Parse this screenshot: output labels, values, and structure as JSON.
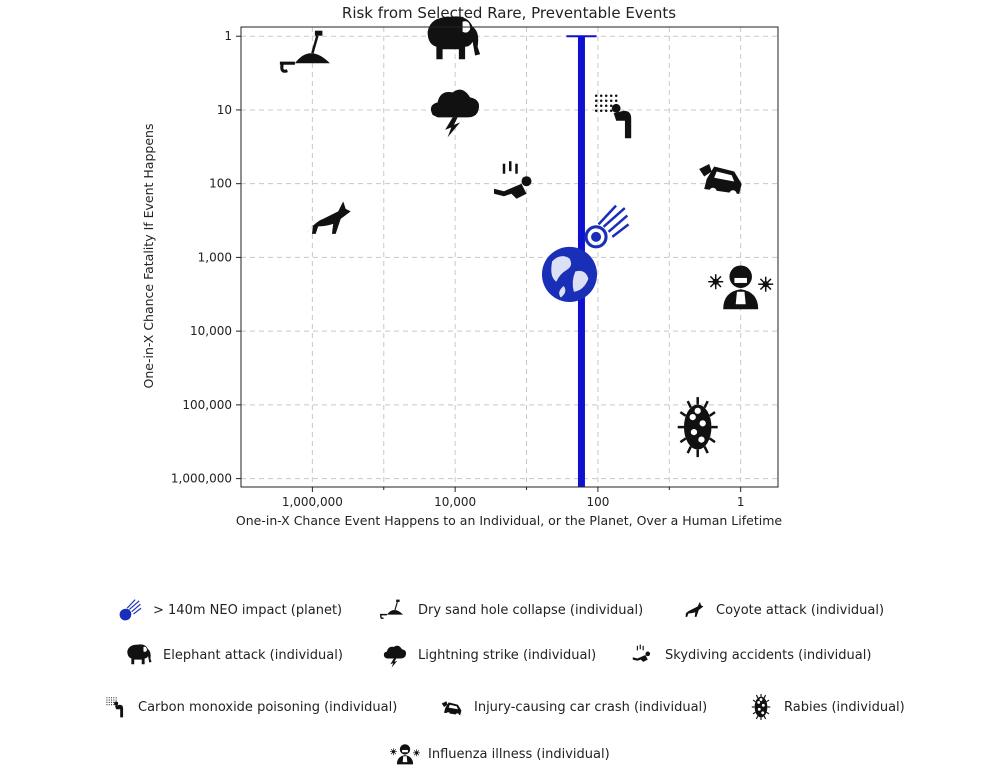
{
  "chart_data": {
    "type": "scatter",
    "title": "Risk from Selected Rare, Preventable Events",
    "xlabel": "One-in-X Chance Event Happens to an Individual, or the Planet, Over a Human Lifetime",
    "ylabel": "One-in-X Chance Fatality If Event Happens",
    "x_scale": "log",
    "y_scale": "log",
    "x_reversed": true,
    "y_reversed": true,
    "xlim": [
      10000000,
      0.3
    ],
    "ylim": [
      0.75,
      1300000
    ],
    "x_ticks": [
      1000000,
      10000,
      100,
      1
    ],
    "x_tick_labels": [
      "1,000,000",
      "10,000",
      "100",
      "1"
    ],
    "y_ticks": [
      1,
      10,
      100,
      1000,
      10000,
      100000,
      1000000
    ],
    "y_tick_labels": [
      "1",
      "10",
      "100",
      "1,000",
      "10,000",
      "100,000",
      "1,000,000"
    ],
    "grid": true,
    "vertical_range": {
      "x": 170,
      "y_from": 1,
      "y_to": 1300000,
      "color": "#1010d0"
    },
    "points": [
      {
        "label": "> 140m NEO impact (planet)",
        "icon": "earth-icon",
        "x": 250,
        "y": 1700,
        "color": "#1a2fb8"
      },
      {
        "label": "> 140m NEO impact (planet)",
        "icon": "meteor-icon",
        "x": 80,
        "y": 400,
        "color": "#1a2fb8"
      },
      {
        "label": "Dry sand hole collapse (individual)",
        "icon": "sand-hole-icon",
        "x": 1000000,
        "y": 1.7,
        "color": "#111111"
      },
      {
        "label": "Coyote attack (individual)",
        "icon": "coyote-icon",
        "x": 600000,
        "y": 300,
        "color": "#111111"
      },
      {
        "label": "Elephant attack (individual)",
        "icon": "elephant-icon",
        "x": 10000,
        "y": 1.1,
        "color": "#111111"
      },
      {
        "label": "Lightning strike (individual)",
        "icon": "lightning-icon",
        "x": 10000,
        "y": 10,
        "color": "#111111"
      },
      {
        "label": "Skydiving accidents (individual)",
        "icon": "skydiver-icon",
        "x": 1500,
        "y": 100,
        "color": "#111111"
      },
      {
        "label": "Carbon monoxide poisoning (individual)",
        "icon": "carbon-monoxide-icon",
        "x": 60,
        "y": 12,
        "color": "#111111"
      },
      {
        "label": "Injury-causing car crash (individual)",
        "icon": "car-crash-icon",
        "x": 2,
        "y": 80,
        "color": "#111111"
      },
      {
        "label": "Influenza illness (individual)",
        "icon": "influenza-icon",
        "x": 1,
        "y": 2500,
        "color": "#111111"
      },
      {
        "label": "Rabies (individual)",
        "icon": "rabies-icon",
        "x": 4,
        "y": 200000,
        "color": "#111111"
      }
    ]
  },
  "legend": [
    {
      "label": "> 140m NEO impact (planet)",
      "icon": "meteor-icon"
    },
    {
      "label": "Dry sand hole collapse (individual)",
      "icon": "sand-hole-icon"
    },
    {
      "label": "Coyote attack (individual)",
      "icon": "coyote-icon"
    },
    {
      "label": "Elephant attack (individual)",
      "icon": "elephant-icon"
    },
    {
      "label": "Lightning strike (individual)",
      "icon": "lightning-icon"
    },
    {
      "label": "Skydiving accidents (individual)",
      "icon": "skydiver-icon"
    },
    {
      "label": "Carbon monoxide poisoning (individual)",
      "icon": "carbon-monoxide-icon"
    },
    {
      "label": "Injury-causing car crash (individual)",
      "icon": "car-crash-icon"
    },
    {
      "label": "Rabies (individual)",
      "icon": "rabies-icon"
    },
    {
      "label": "Influenza illness (individual)",
      "icon": "influenza-icon"
    }
  ]
}
